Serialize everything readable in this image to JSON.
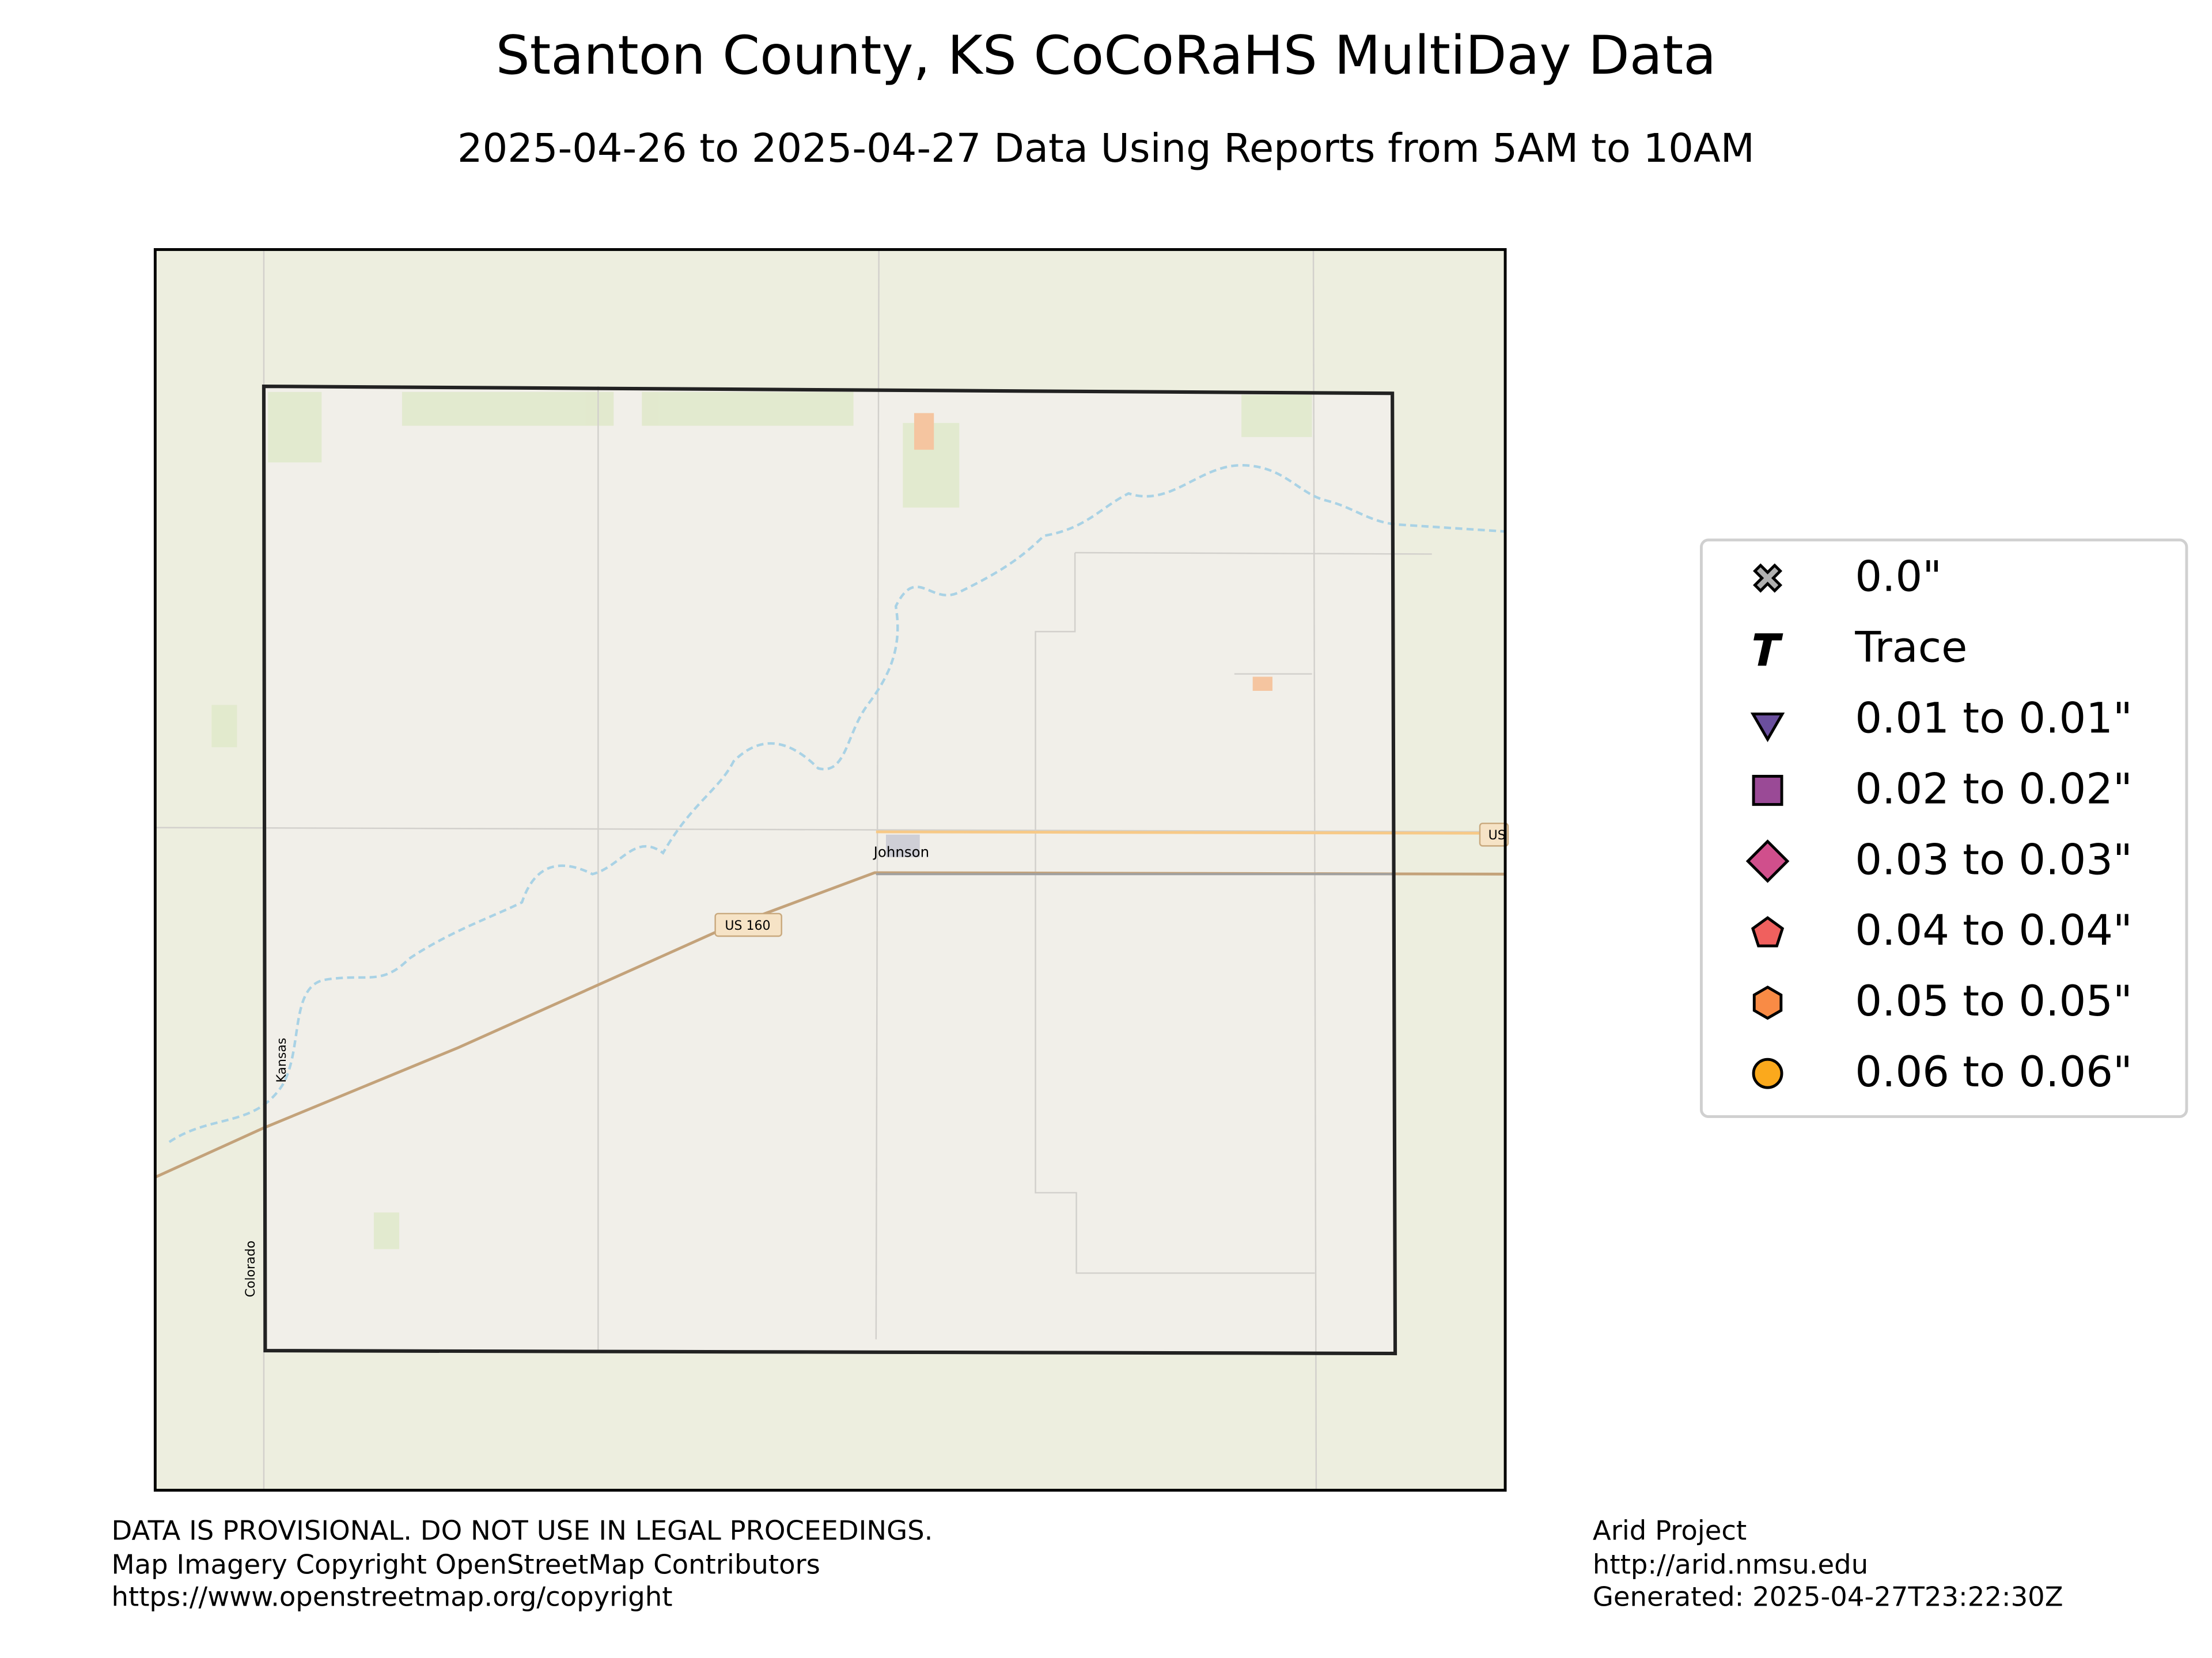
{
  "header": {
    "title": "Stanton County, KS CoCoRaHS MultiDay Data",
    "subtitle": "2025-04-26 to 2025-04-27 Data Using Reports from 5AM to 10AM"
  },
  "map": {
    "labels": {
      "town": "Johnson",
      "highway": "US 160",
      "highway_edge": "US",
      "state_ks": "Kansas",
      "state_co": "Colorado"
    }
  },
  "legend": {
    "items": [
      {
        "label": "0.0\"",
        "color": "#b0b0b0"
      },
      {
        "label": "Trace",
        "color": "#000000"
      },
      {
        "label": "0.01 to 0.01\"",
        "color": "#6a4f9e"
      },
      {
        "label": "0.02 to 0.02\"",
        "color": "#9a4a96"
      },
      {
        "label": "0.03 to 0.03\"",
        "color": "#d04f8c"
      },
      {
        "label": "0.04 to 0.04\"",
        "color": "#f0605e"
      },
      {
        "label": "0.05 to 0.05\"",
        "color": "#f98b45"
      },
      {
        "label": "0.06 to 0.06\"",
        "color": "#fba91c"
      }
    ]
  },
  "footer": {
    "left": [
      "DATA IS PROVISIONAL. DO NOT USE IN LEGAL PROCEEDINGS.",
      "Map Imagery Copyright OpenStreetMap Contributors",
      "https://www.openstreetmap.org/copyright"
    ],
    "right": [
      "Arid Project",
      "http://arid.nmsu.edu",
      "Generated: 2025-04-27T23:22:30Z"
    ]
  }
}
